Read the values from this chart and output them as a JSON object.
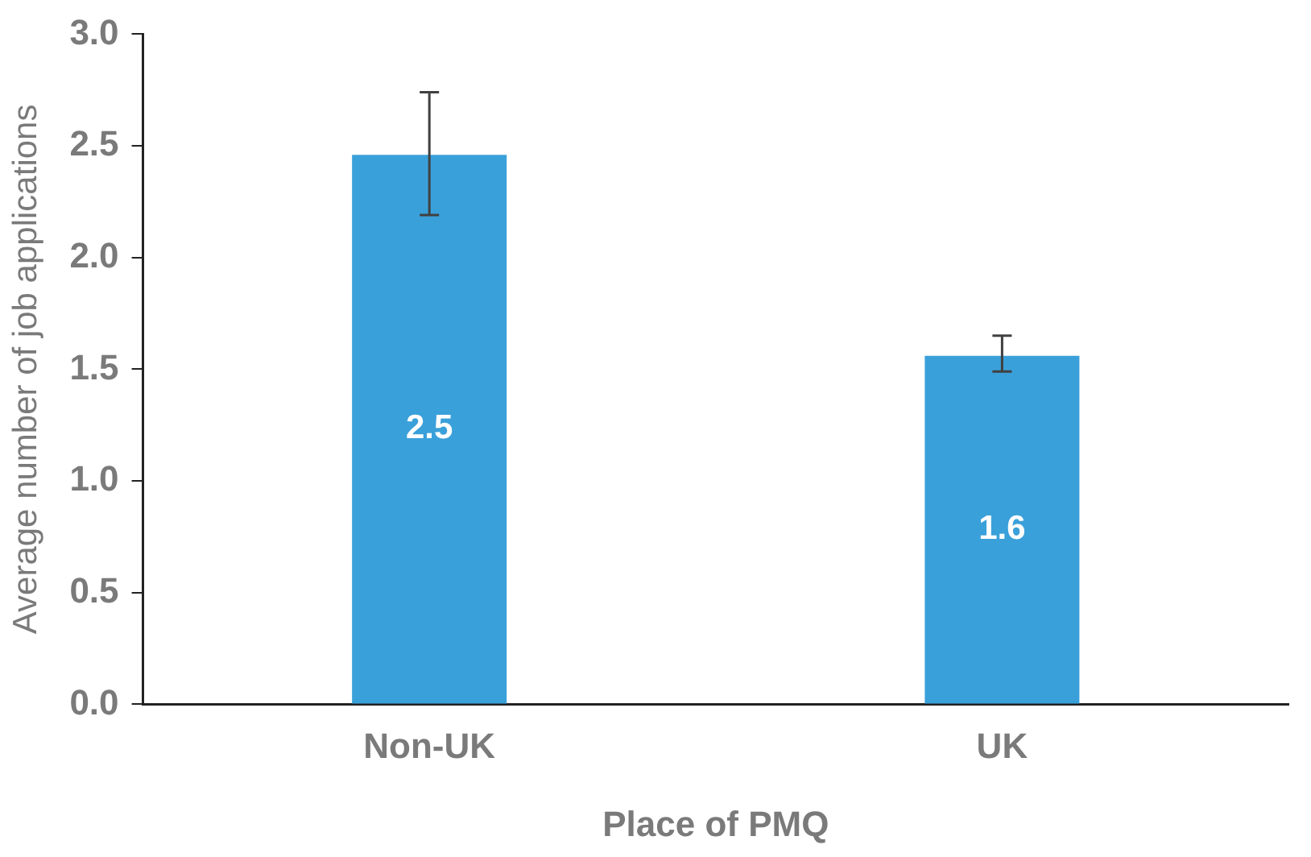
{
  "chart_data": {
    "type": "bar",
    "xlabel": "Place of PMQ",
    "ylabel": "Average number of job applications",
    "categories": [
      "Non-UK",
      "UK"
    ],
    "values": [
      2.46,
      1.56
    ],
    "value_labels": [
      "2.5",
      "1.6"
    ],
    "errors": [
      [
        2.19,
        2.74
      ],
      [
        1.49,
        1.65
      ]
    ],
    "color": "#3aa0da",
    "ylim": [
      0,
      3
    ],
    "yticks": [
      {
        "value": 0,
        "label": "0.0"
      },
      0.5,
      {
        "value": 1,
        "label": "1.0"
      },
      1.5,
      {
        "value": 2,
        "label": "2.0"
      },
      2.5,
      {
        "value": 3,
        "label": "3.0"
      }
    ],
    "grid": false,
    "legend": false
  }
}
